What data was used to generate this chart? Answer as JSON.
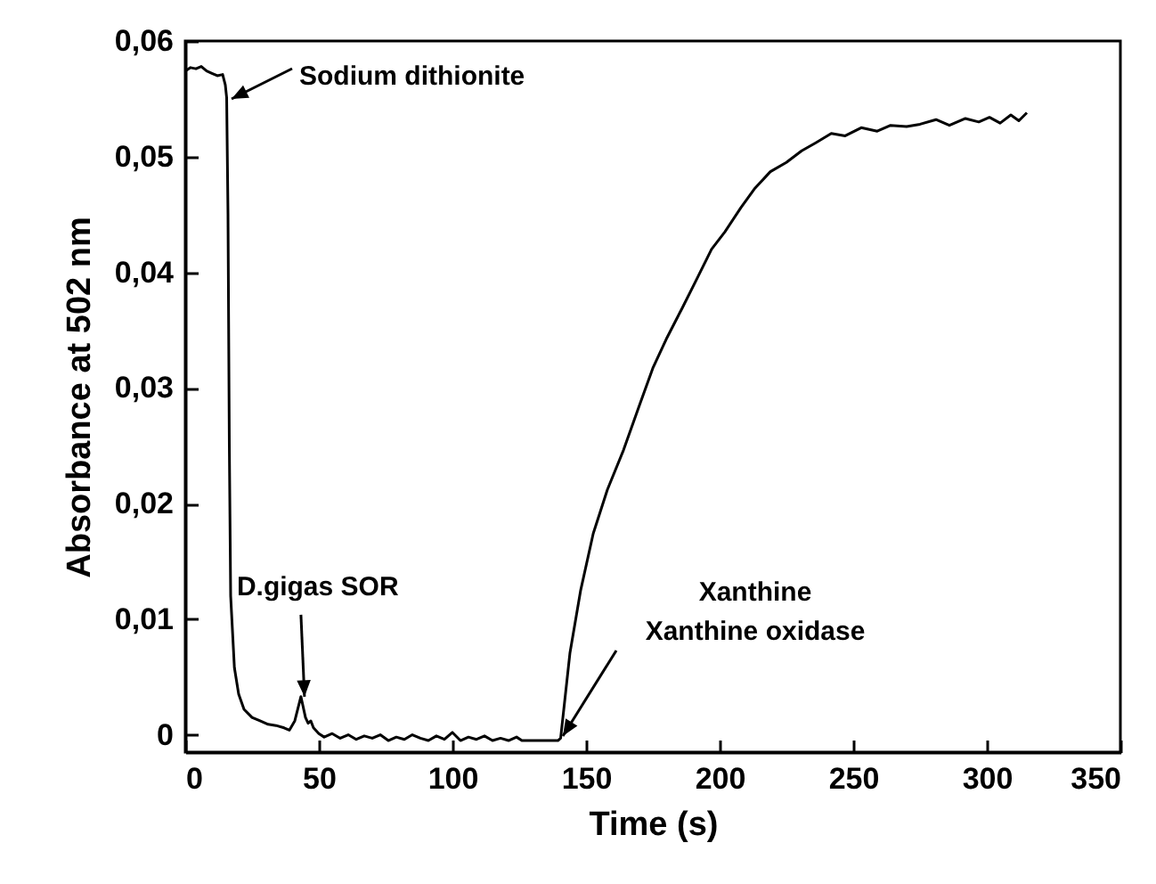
{
  "chart_data": {
    "type": "line",
    "xlabel": "Time (s)",
    "ylabel": "Absorbance at 502 nm",
    "x": [
      0,
      2,
      4,
      6,
      8,
      10,
      12,
      14,
      15,
      15.5,
      16,
      16.5,
      17,
      18.4,
      20,
      22,
      25,
      28,
      31,
      34,
      37,
      39,
      41,
      43.3,
      45,
      46,
      47,
      48,
      50,
      52,
      55,
      58,
      61,
      64,
      67,
      70,
      73,
      76,
      79,
      82,
      85,
      88,
      91,
      94,
      97,
      100,
      103,
      106,
      109,
      112,
      115,
      118,
      121,
      124,
      126,
      139.5,
      140.5,
      144,
      148,
      152.7,
      158,
      164,
      170,
      175,
      180,
      186,
      191,
      197,
      202,
      208,
      213,
      219,
      225,
      230.7,
      236,
      241.8,
      247,
      253,
      259,
      264,
      270,
      275,
      281,
      286,
      292,
      297,
      301,
      305,
      309,
      312,
      315
    ],
    "series": [
      {
        "color": "#000000",
        "values": [
          0.0574,
          0.0577,
          0.0576,
          0.0578,
          0.0574,
          0.0572,
          0.057,
          0.0571,
          0.0562,
          0.0551,
          0.045,
          0.025,
          0.012,
          0.0058,
          0.0035,
          0.0022,
          0.0015,
          0.0012,
          0.0009,
          0.0008,
          0.0006,
          0.0004,
          0.0012,
          0.0033,
          0.0015,
          0.001,
          0.0012,
          0.0006,
          0.0001,
          -0.0002,
          0.0001,
          -0.0003,
          0.0,
          -0.0004,
          -0.0001,
          -0.0003,
          0.0,
          -0.0005,
          -0.0002,
          -0.0004,
          0.0,
          -0.0003,
          -0.0005,
          -0.0001,
          -0.0004,
          0.0002,
          -0.0005,
          -0.0002,
          -0.0004,
          -0.0001,
          -0.0005,
          -0.0003,
          -0.0005,
          -0.0002,
          -0.0005,
          -0.0005,
          -0.0003,
          0.0071,
          0.0125,
          0.0174,
          0.0212,
          0.0246,
          0.0285,
          0.0317,
          0.0342,
          0.0369,
          0.0392,
          0.042,
          0.0435,
          0.0456,
          0.0472,
          0.0487,
          0.0495,
          0.0505,
          0.0512,
          0.052,
          0.0518,
          0.0525,
          0.0522,
          0.0527,
          0.0526,
          0.0528,
          0.0532,
          0.0527,
          0.0533,
          0.053,
          0.0534,
          0.0529,
          0.0536,
          0.0531,
          0.0538
        ]
      }
    ],
    "xlim": [
      0,
      350
    ],
    "xticks": [
      0,
      50,
      100,
      150,
      200,
      250,
      300,
      350
    ],
    "ylim": [
      -0.0015,
      0.06
    ],
    "yticks": [
      {
        "value": 0,
        "label": "0"
      },
      {
        "value": 0.01,
        "label": "0,01"
      },
      {
        "value": 0.02,
        "label": "0,02"
      },
      {
        "value": 0.03,
        "label": "0,03"
      },
      {
        "value": 0.04,
        "label": "0,04"
      },
      {
        "value": 0.05,
        "label": "0,05"
      },
      {
        "value": 0.06,
        "label": "0,06"
      }
    ],
    "annotations": [
      {
        "text": "Sodium dithionite",
        "x": 16,
        "y": 0.0553
      },
      {
        "text": "D.gigas SOR",
        "x": 43.3,
        "y": 0.0036
      },
      "Xanthine",
      {
        "text": "Xanthine oxidase",
        "x": 140,
        "y": 0.0002
      }
    ],
    "grid": false,
    "legend": false,
    "marker": "none",
    "line_style": "solid"
  }
}
